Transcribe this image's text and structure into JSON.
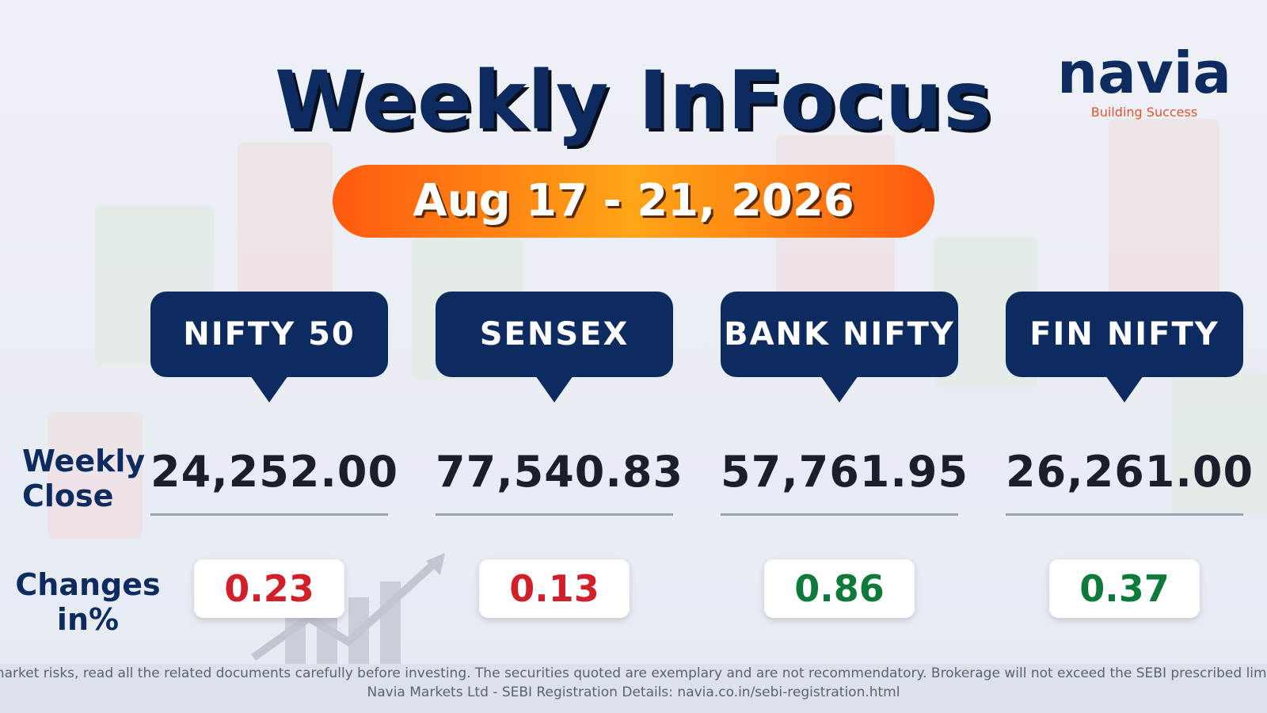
{
  "header": {
    "title": "Weekly InFocus",
    "date": "Aug 17 - 21, 2026"
  },
  "logo": {
    "name": "navia",
    "tagline": "Building Success"
  },
  "row_labels": {
    "close": "Weekly Close",
    "change": "Changes in%"
  },
  "indices": [
    {
      "name": "NIFTY 50",
      "close": "24,252.00",
      "change": 0.23,
      "color": "#d0202a"
    },
    {
      "name": "SENSEX",
      "close": "77,540.83",
      "change": 0.13,
      "color": "#d0202a"
    },
    {
      "name": "BANK NIFTY",
      "close": "57,761.95",
      "change": 0.86,
      "color": "#0e7a3a"
    },
    {
      "name": "FIN NIFTY",
      "close": "26,261.00",
      "change": 0.37,
      "color": "#0e7a3a"
    }
  ],
  "footer": {
    "disclaimer": "market risks, read all the related documents carefully before investing. The securities quoted are exemplary and are not recommendatory. Brokerage will not exceed the SEBI prescribed limit",
    "registration": "Navia Markets Ltd - SEBI Registration Details: navia.co.in/sebi-registration.html"
  }
}
